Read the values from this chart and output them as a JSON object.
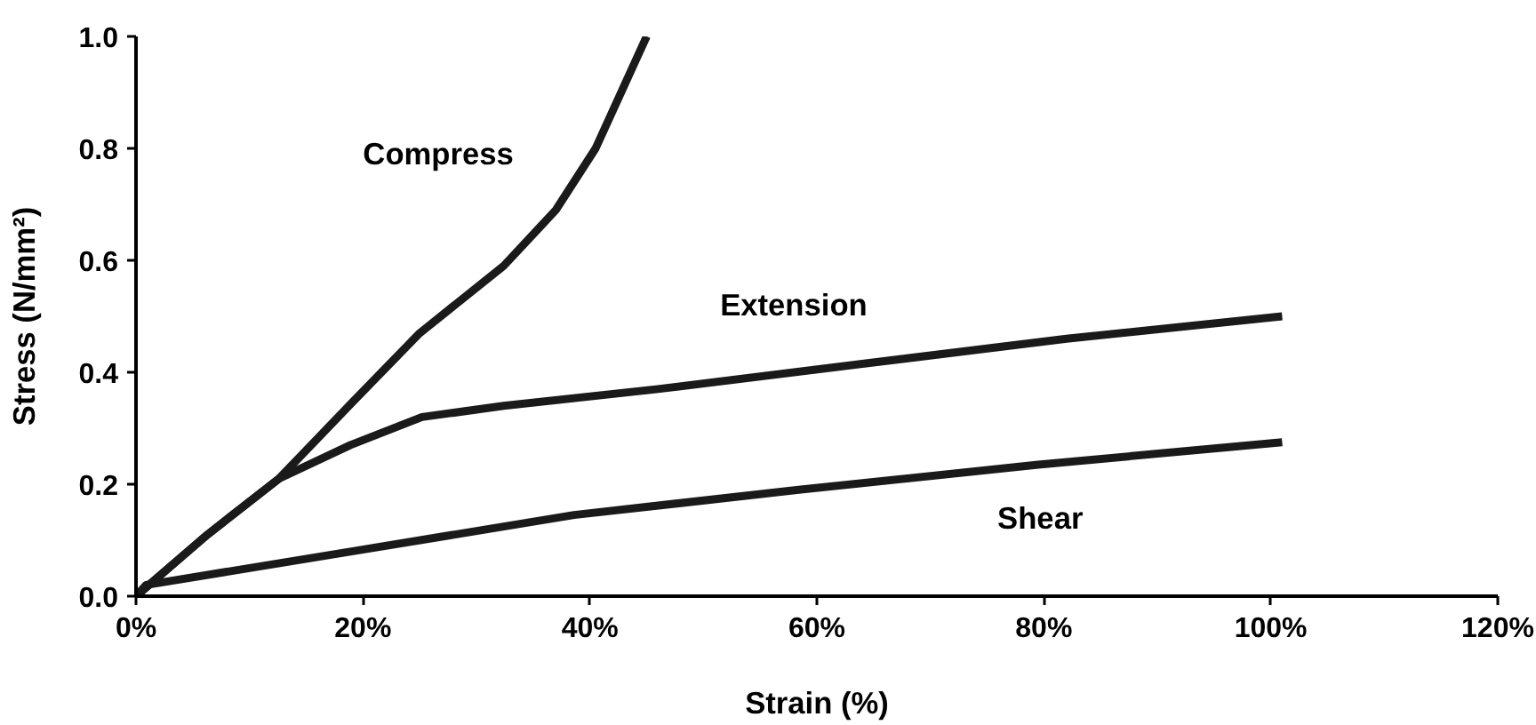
{
  "chart_data": {
    "type": "line",
    "xlabel": "Strain (%)",
    "ylabel": "Stress (N/mm²)",
    "xlim": [
      0,
      120
    ],
    "ylim": [
      0,
      1.0
    ],
    "xticks": [
      {
        "value": 0,
        "label": "0%"
      },
      {
        "value": 20,
        "label": "20%"
      },
      {
        "value": 40,
        "label": "40%"
      },
      {
        "value": 60,
        "label": "60%"
      },
      {
        "value": 80,
        "label": "80%"
      },
      {
        "value": 100,
        "label": "100%"
      },
      {
        "value": 120,
        "label": "120%"
      }
    ],
    "yticks": [
      {
        "value": 0,
        "label": "0.0"
      },
      {
        "value": 0.2,
        "label": "0.2"
      },
      {
        "value": 0.4,
        "label": "0.4"
      },
      {
        "value": 0.6,
        "label": "0.6"
      },
      {
        "value": 0.8,
        "label": "0.8"
      },
      {
        "value": 1.0,
        "label": "1.0"
      }
    ],
    "grid": false,
    "marker": "none",
    "line_style": "solid",
    "series": [
      {
        "name": "Compress",
        "color": "#1a1a1a",
        "x": [
          0,
          6.3,
          12.6,
          19,
          25,
          32.4,
          37,
          40.5,
          45
        ],
        "values": [
          0,
          0.11,
          0.21,
          0.345,
          0.47,
          0.59,
          0.69,
          0.8,
          1.0
        ]
      },
      {
        "name": "Extension",
        "color": "#1a1a1a",
        "x": [
          0,
          6.3,
          12.6,
          18.9,
          25.2,
          32.4,
          46,
          64,
          82,
          101
        ],
        "values": [
          0,
          0.11,
          0.21,
          0.27,
          0.32,
          0.34,
          0.37,
          0.415,
          0.46,
          0.5
        ]
      },
      {
        "name": "Shear",
        "color": "#1a1a1a",
        "x": [
          0,
          0.9,
          19,
          38.6,
          58.4,
          79.5,
          101
        ],
        "values": [
          0,
          0.02,
          0.08,
          0.145,
          0.19,
          0.235,
          0.275
        ]
      }
    ]
  }
}
